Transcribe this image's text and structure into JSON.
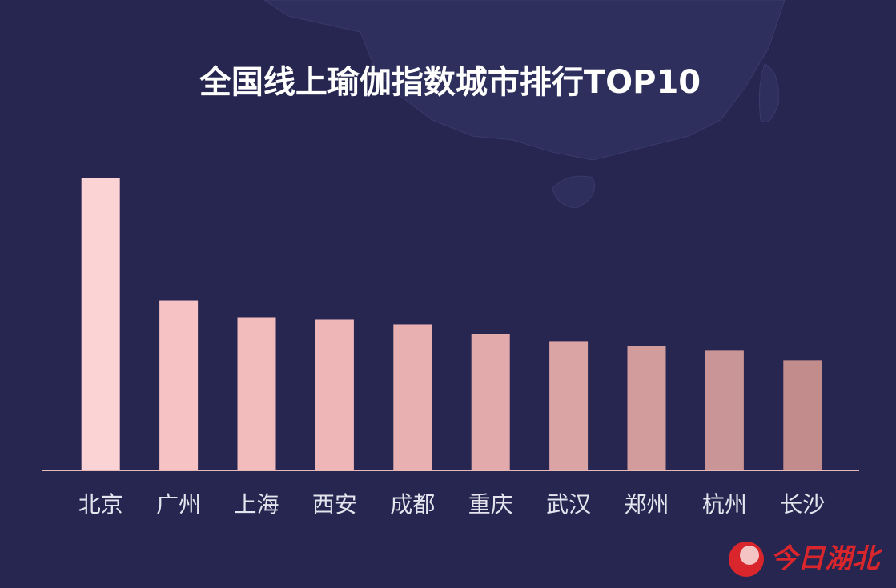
{
  "chart_data": {
    "type": "bar",
    "title": "全国线上瑜伽指数城市排行TOP10",
    "categories": [
      "北京",
      "广州",
      "上海",
      "西安",
      "成都",
      "重庆",
      "武汉",
      "郑州",
      "杭州",
      "长沙"
    ],
    "values": [
      365,
      212,
      191,
      188,
      182,
      170,
      161,
      155,
      149,
      137
    ],
    "colors": [
      "#fbd3d4",
      "#f6c2c3",
      "#f2bbbc",
      "#efb6b7",
      "#e9b0b1",
      "#e2aaab",
      "#daa3a4",
      "#d29c9d",
      "#ca9596",
      "#c28c8c"
    ],
    "ylim": [
      0,
      400
    ]
  },
  "watermark": "今日湖北"
}
